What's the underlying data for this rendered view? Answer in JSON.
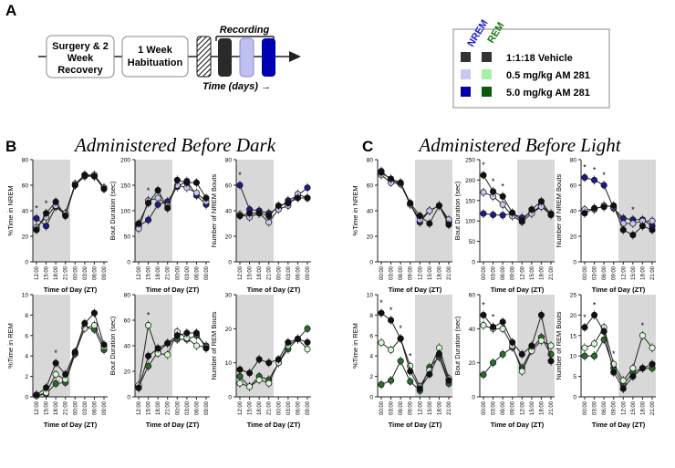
{
  "panels": {
    "a": "A",
    "b": "B",
    "c": "C"
  },
  "timeline": {
    "steps": [
      "Surgery & 2",
      "Week",
      "Recovery",
      "1 Week",
      "Habituation"
    ],
    "recording_label": "Recording",
    "time_label": "Time (days) →"
  },
  "legend": {
    "nrem_header": "NREM",
    "rem_header": "REM",
    "items": [
      {
        "label": "1:1:18 Vehicle",
        "nrem_color": "#333333",
        "rem_color": "#333333"
      },
      {
        "label": "0.5 mg/kg AM 281",
        "nrem_color": "#c8c8f2",
        "rem_color": "#a4f0a4"
      },
      {
        "label": "5.0 mg/kg AM 281",
        "nrem_color": "#0000a6",
        "rem_color": "#0c5a0c"
      }
    ]
  },
  "section_titles": {
    "dark": "Administered Before Dark",
    "light": "Administered Before Light"
  },
  "colors": {
    "vehicle": "#111111",
    "nrem_low": "#c6c6ee",
    "nrem_high": "#1c1c8c",
    "rem_low": "#d4f7d4",
    "rem_high": "#2a6e2a",
    "shade": "#d8d8d8"
  },
  "chart_data": [
    {
      "id": "b1",
      "type": "line",
      "ylabel": "%Time in NREM",
      "xlabel": "Time of Day (ZT)",
      "ylim": [
        0,
        80
      ],
      "yticks": [
        0,
        20,
        40,
        60,
        80
      ],
      "categories": [
        "12:00",
        "15:00",
        "18:00",
        "21:00",
        "00:00",
        "03:00",
        "06:00",
        "09:00"
      ],
      "shaded": "first_half",
      "kind": "nrem",
      "series": [
        {
          "name": "1:1:18 Vehicle",
          "values": [
            25,
            38,
            47,
            36,
            60,
            68,
            67,
            57
          ]
        },
        {
          "name": "0.5 mg/kg AM 281",
          "values": [
            27,
            35,
            44,
            38,
            61,
            68,
            68,
            58
          ]
        },
        {
          "name": "5.0 mg/kg AM 281",
          "values": [
            34,
            28,
            43,
            37,
            60,
            67,
            67,
            58
          ]
        }
      ],
      "stars": [
        0,
        1
      ]
    },
    {
      "id": "b2",
      "type": "line",
      "ylabel": "Bout Duration (sec)",
      "xlabel": "Time of Day (ZT)",
      "ylim": [
        0,
        200
      ],
      "yticks": [
        0,
        50,
        100,
        150,
        200
      ],
      "categories": [
        "12:00",
        "15:00",
        "18:00",
        "21:00",
        "00:00",
        "03:00",
        "06:00",
        "09:00"
      ],
      "shaded": "first_half",
      "kind": "nrem",
      "series": [
        {
          "name": "1:1:18 Vehicle",
          "values": [
            75,
            115,
            140,
            105,
            160,
            155,
            155,
            125
          ]
        },
        {
          "name": "0.5 mg/kg AM 281",
          "values": [
            65,
            120,
            125,
            110,
            150,
            145,
            135,
            118
          ]
        },
        {
          "name": "5.0 mg/kg AM 281",
          "values": [
            70,
            82,
            112,
            118,
            147,
            158,
            130,
            112
          ]
        }
      ],
      "stars": [
        1
      ]
    },
    {
      "id": "b3",
      "type": "line",
      "ylabel": "Number of NREM Bouts",
      "xlabel": "Time of Day (ZT)",
      "ylim": [
        0,
        80
      ],
      "yticks": [
        0,
        20,
        40,
        60,
        80
      ],
      "categories": [
        "12:00",
        "15:00",
        "18:00",
        "21:00",
        "00:00",
        "03:00",
        "06:00",
        "09:00"
      ],
      "shaded": "first_half",
      "kind": "nrem",
      "series": [
        {
          "name": "1:1:18 Vehicle",
          "values": [
            36,
            38,
            38,
            36,
            44,
            46,
            50,
            50
          ]
        },
        {
          "name": "0.5 mg/kg AM 281",
          "values": [
            37,
            35,
            38,
            31,
            41,
            44,
            53,
            50
          ]
        },
        {
          "name": "5.0 mg/kg AM 281",
          "values": [
            60,
            41,
            40,
            38,
            42,
            48,
            52,
            58
          ]
        }
      ],
      "stars": [
        0
      ]
    },
    {
      "id": "b4",
      "type": "line",
      "ylabel": "%Time in REM",
      "xlabel": "Time of Day (ZT)",
      "ylim": [
        0,
        10
      ],
      "yticks": [
        0,
        2,
        4,
        6,
        8,
        10
      ],
      "categories": [
        "12:00",
        "15:00",
        "18:00",
        "21:00",
        "00:00",
        "03:00",
        "06:00",
        "09:00"
      ],
      "shaded": "first_half",
      "kind": "rem",
      "series": [
        {
          "name": "1:1:18 Vehicle",
          "values": [
            0.2,
            0.9,
            3.3,
            2.2,
            4.4,
            7.2,
            8.2,
            5.1
          ]
        },
        {
          "name": "0.5 mg/kg AM 281",
          "values": [
            0.1,
            0.4,
            2.2,
            1.7,
            4.3,
            6.7,
            7.0,
            4.9
          ]
        },
        {
          "name": "5.0 mg/kg AM 281",
          "values": [
            0.1,
            0.3,
            1.3,
            1.4,
            4.2,
            6.8,
            6.6,
            4.6
          ]
        }
      ],
      "stars": [
        2
      ]
    },
    {
      "id": "b5",
      "type": "line",
      "ylabel": "Bout Duration (sec)",
      "xlabel": "Time of Day (ZT)",
      "ylim": [
        0,
        80
      ],
      "yticks": [
        0,
        20,
        40,
        60,
        80
      ],
      "categories": [
        "12:00",
        "15:00",
        "18:00",
        "21:00",
        "00:00",
        "03:00",
        "06:00",
        "09:00"
      ],
      "shaded": "first_half",
      "kind": "rem",
      "series": [
        {
          "name": "1:1:18 Vehicle",
          "values": [
            7,
            32,
            38,
            42,
            48,
            50,
            50,
            38
          ]
        },
        {
          "name": "0.5 mg/kg AM 281",
          "values": [
            9,
            56,
            34,
            33,
            51,
            46,
            40,
            39
          ]
        },
        {
          "name": "5.0 mg/kg AM 281",
          "values": [
            8,
            24,
            35,
            42,
            45,
            45,
            48,
            40
          ]
        }
      ],
      "stars": [
        1
      ]
    },
    {
      "id": "b6",
      "type": "line",
      "ylabel": "Number of REM Bouts",
      "xlabel": "Time of Day (ZT)",
      "ylim": [
        0,
        30
      ],
      "yticks": [
        0,
        10,
        20,
        30
      ],
      "categories": [
        "12:00",
        "15:00",
        "18:00",
        "21:00",
        "00:00",
        "03:00",
        "06:00",
        "09:00"
      ],
      "shaded": "first_half",
      "kind": "rem",
      "series": [
        {
          "name": "1:1:18 Vehicle",
          "values": [
            8,
            7,
            11,
            10,
            11,
            16,
            17,
            16
          ]
        },
        {
          "name": "0.5 mg/kg AM 281",
          "values": [
            4,
            3,
            5,
            4,
            10,
            15,
            17,
            14
          ]
        },
        {
          "name": "5.0 mg/kg AM 281",
          "values": [
            6,
            3,
            6,
            5,
            10,
            14,
            17,
            20
          ]
        }
      ],
      "stars": []
    },
    {
      "id": "c1",
      "type": "line",
      "ylabel": "%Time in NREM",
      "xlabel": "Time of Day (ZT)",
      "ylim": [
        0,
        80
      ],
      "yticks": [
        0,
        20,
        40,
        60,
        80
      ],
      "categories": [
        "00:00",
        "03:00",
        "06:00",
        "09:00",
        "12:00",
        "15:00",
        "18:00",
        "21:00"
      ],
      "shaded": "second_half",
      "kind": "nrem",
      "series": [
        {
          "name": "1:1:18 Vehicle",
          "values": [
            70,
            65,
            62,
            46,
            36,
            30,
            44,
            29
          ]
        },
        {
          "name": "0.5 mg/kg AM 281",
          "values": [
            68,
            62,
            61,
            45,
            33,
            40,
            44,
            33
          ]
        },
        {
          "name": "5.0 mg/kg AM 281",
          "values": [
            71,
            64,
            61,
            45,
            31,
            40,
            44,
            31
          ]
        }
      ],
      "stars": []
    },
    {
      "id": "c2",
      "type": "line",
      "ylabel": "Bout Duration (sec)",
      "xlabel": "Time of Day (ZT)",
      "ylim": [
        0,
        250
      ],
      "yticks": [
        0,
        50,
        100,
        150,
        200,
        250
      ],
      "categories": [
        "00:00",
        "03:00",
        "06:00",
        "09:00",
        "12:00",
        "15:00",
        "18:00",
        "21:00"
      ],
      "shaded": "second_half",
      "kind": "nrem",
      "series": [
        {
          "name": "1:1:18 Vehicle",
          "values": [
            212,
            172,
            160,
            120,
            100,
            128,
            148,
            115
          ]
        },
        {
          "name": "0.5 mg/kg AM 281",
          "values": [
            170,
            160,
            140,
            112,
            98,
            118,
            135,
            115
          ]
        },
        {
          "name": "5.0 mg/kg AM 281",
          "values": [
            118,
            115,
            114,
            118,
            108,
            120,
            138,
            118
          ]
        }
      ],
      "stars": [
        0,
        1,
        2
      ]
    },
    {
      "id": "c3",
      "type": "line",
      "ylabel": "Number of NREM Bouts",
      "xlabel": "Time of Day (ZT)",
      "ylim": [
        0,
        80
      ],
      "yticks": [
        0,
        20,
        40,
        60,
        80
      ],
      "categories": [
        "00:00",
        "03:00",
        "06:00",
        "09:00",
        "12:00",
        "15:00",
        "18:00",
        "21:00"
      ],
      "shaded": "second_half",
      "kind": "nrem",
      "series": [
        {
          "name": "1:1:18 Vehicle",
          "values": [
            38,
            42,
            43,
            44,
            25,
            21,
            28,
            25
          ]
        },
        {
          "name": "0.5 mg/kg AM 281",
          "values": [
            41,
            41,
            44,
            43,
            30,
            30,
            32,
            32
          ]
        },
        {
          "name": "5.0 mg/kg AM 281",
          "values": [
            66,
            64,
            60,
            42,
            34,
            33,
            33,
            28
          ]
        }
      ],
      "stars": [
        0,
        1,
        2,
        5
      ]
    },
    {
      "id": "c4",
      "type": "line",
      "ylabel": "%Time in REM",
      "xlabel": "Time of Day (ZT)",
      "ylim": [
        0,
        10
      ],
      "yticks": [
        0,
        2,
        4,
        6,
        8,
        10
      ],
      "categories": [
        "00:00",
        "03:00",
        "06:00",
        "09:00",
        "12:00",
        "15:00",
        "18:00",
        "21:00"
      ],
      "shaded": "second_half",
      "kind": "rem",
      "series": [
        {
          "name": "1:1:18 Vehicle",
          "values": [
            8.2,
            7.5,
            5.7,
            2.5,
            0.8,
            2.2,
            4.2,
            1.6
          ]
        },
        {
          "name": "0.5 mg/kg AM 281",
          "values": [
            5.3,
            4.6,
            5.7,
            3.0,
            1.0,
            2.6,
            4.8,
            1.8
          ]
        },
        {
          "name": "5.0 mg/kg AM 281",
          "values": [
            1.2,
            1.6,
            3.5,
            1.5,
            0.6,
            2.9,
            3.9,
            1.3
          ]
        }
      ],
      "stars": [
        0,
        1,
        2,
        3
      ]
    },
    {
      "id": "c5",
      "type": "line",
      "ylabel": "Bout Duration (sec)",
      "xlabel": "Time of Day (ZT)",
      "ylim": [
        0,
        60
      ],
      "yticks": [
        0,
        20,
        40,
        60
      ],
      "categories": [
        "00:00",
        "03:00",
        "06:00",
        "09:00",
        "12:00",
        "15:00",
        "18:00",
        "21:00"
      ],
      "shaded": "second_half",
      "kind": "rem",
      "series": [
        {
          "name": "1:1:18 Vehicle",
          "values": [
            48,
            41,
            44,
            32,
            25,
            30,
            48,
            21
          ]
        },
        {
          "name": "0.5 mg/kg AM 281",
          "values": [
            42,
            40,
            40,
            30,
            15,
            27,
            33,
            30
          ]
        },
        {
          "name": "5.0 mg/kg AM 281",
          "values": [
            13,
            20,
            25,
            29,
            17,
            28,
            35,
            25
          ]
        }
      ],
      "stars": [
        0,
        1
      ]
    },
    {
      "id": "c6",
      "type": "line",
      "ylabel": "Number of REM Bouts",
      "xlabel": "Time of Day (ZT)",
      "ylim": [
        0,
        25
      ],
      "yticks": [
        0,
        5,
        10,
        15,
        20,
        25
      ],
      "categories": [
        "00:00",
        "03:00",
        "06:00",
        "09:00",
        "12:00",
        "15:00",
        "18:00",
        "21:00"
      ],
      "shaded": "second_half",
      "kind": "rem",
      "series": [
        {
          "name": "1:1:18 Vehicle",
          "values": [
            17,
            20,
            16,
            6,
            2,
            5,
            7,
            8
          ]
        },
        {
          "name": "0.5 mg/kg AM 281",
          "values": [
            12,
            13,
            17,
            8,
            4,
            7,
            15,
            12
          ]
        },
        {
          "name": "5.0 mg/kg AM 281",
          "values": [
            10,
            10,
            14,
            7,
            3,
            6,
            7,
            7
          ]
        }
      ],
      "stars": [
        0,
        1,
        3,
        6
      ]
    }
  ]
}
